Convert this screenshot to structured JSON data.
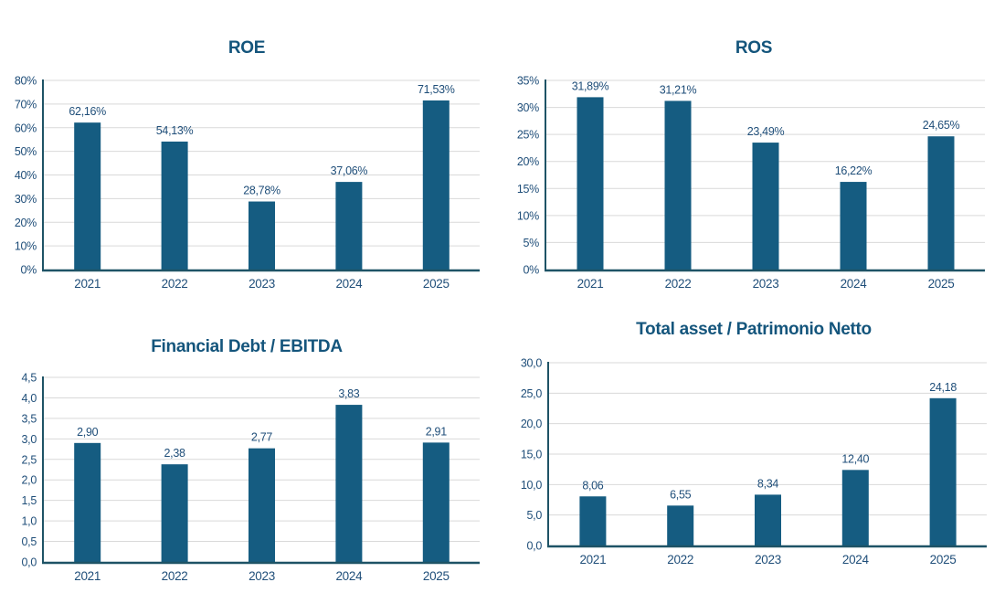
{
  "page": {
    "background": "#ffffff"
  },
  "colors": {
    "bar": "#155c81",
    "gridline": "#d9d9d9",
    "axis": "#1e5366",
    "label_text": "#1f4e79",
    "title_text": "#14557c"
  },
  "chart_data": [
    {
      "type": "bar",
      "title": "ROE",
      "categories": [
        "2021",
        "2022",
        "2023",
        "2024",
        "2025"
      ],
      "values": [
        62.16,
        54.13,
        28.78,
        37.06,
        71.53
      ],
      "value_labels": [
        "62,16%",
        "54,13%",
        "28,78%",
        "37,06%",
        "71,53%"
      ],
      "xlabel": "",
      "ylabel": "",
      "ylim": [
        0,
        80
      ],
      "ytick_values": [
        0,
        10,
        20,
        30,
        40,
        50,
        60,
        70,
        80
      ],
      "ytick_labels": [
        "0%",
        "10%",
        "20%",
        "30%",
        "40%",
        "50%",
        "60%",
        "70%",
        "80%"
      ],
      "grid": "horizontal",
      "legend": "none"
    },
    {
      "type": "bar",
      "title": "ROS",
      "categories": [
        "2021",
        "2022",
        "2023",
        "2024",
        "2025"
      ],
      "values": [
        31.89,
        31.21,
        23.49,
        16.22,
        24.65
      ],
      "value_labels": [
        "31,89%",
        "31,21%",
        "23,49%",
        "16,22%",
        "24,65%"
      ],
      "xlabel": "",
      "ylabel": "",
      "ylim": [
        0,
        35
      ],
      "ytick_values": [
        0,
        5,
        10,
        15,
        20,
        25,
        30,
        35
      ],
      "ytick_labels": [
        "0%",
        "5%",
        "10%",
        "15%",
        "20%",
        "25%",
        "30%",
        "35%"
      ],
      "grid": "horizontal",
      "legend": "none"
    },
    {
      "type": "bar",
      "title": "Financial Debt / EBITDA",
      "categories": [
        "2021",
        "2022",
        "2023",
        "2024",
        "2025"
      ],
      "values": [
        2.9,
        2.38,
        2.77,
        3.83,
        2.91
      ],
      "value_labels": [
        "2,90",
        "2,38",
        "2,77",
        "3,83",
        "2,91"
      ],
      "xlabel": "",
      "ylabel": "",
      "ylim": [
        0,
        4.5
      ],
      "ytick_values": [
        0,
        0.5,
        1.0,
        1.5,
        2.0,
        2.5,
        3.0,
        3.5,
        4.0,
        4.5
      ],
      "ytick_labels": [
        "0,0",
        "0,5",
        "1,0",
        "1,5",
        "2,0",
        "2,5",
        "3,0",
        "3,5",
        "4,0",
        "4,5"
      ],
      "grid": "horizontal",
      "legend": "none"
    },
    {
      "type": "bar",
      "title": "Total asset /  Patrimonio Netto",
      "categories": [
        "2021",
        "2022",
        "2023",
        "2024",
        "2025"
      ],
      "values": [
        8.06,
        6.55,
        8.34,
        12.4,
        24.18
      ],
      "value_labels": [
        "8,06",
        "6,55",
        "8,34",
        "12,40",
        "24,18"
      ],
      "xlabel": "",
      "ylabel": "",
      "ylim": [
        0,
        30
      ],
      "ytick_values": [
        0,
        5,
        10,
        15,
        20,
        25,
        30
      ],
      "ytick_labels": [
        "0,0",
        "5,0",
        "10,0",
        "15,0",
        "20,0",
        "25,0",
        "30,0"
      ],
      "grid": "horizontal",
      "legend": "none"
    }
  ]
}
